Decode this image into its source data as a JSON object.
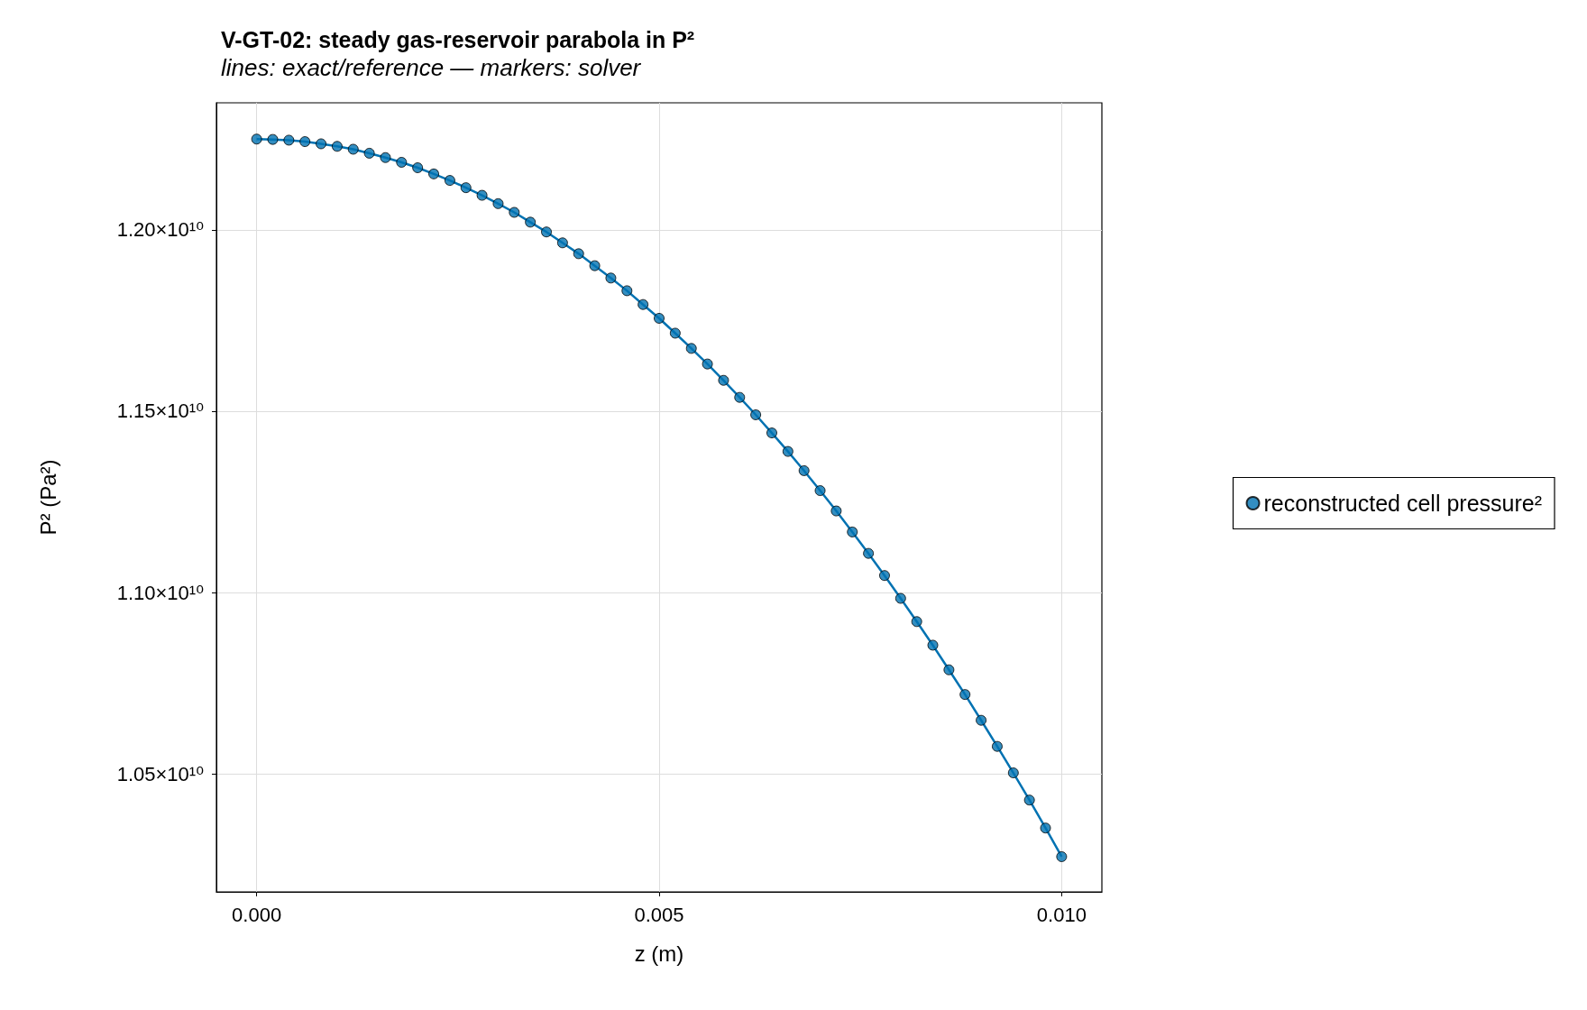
{
  "chart_data": {
    "type": "line",
    "title": "V-GT-02: steady gas-reservoir parabola in P²",
    "subtitle": "lines: exact/reference — markers: solver",
    "xlabel": "z (m)",
    "ylabel": "P² (Pa²)",
    "x": [
      0,
      0.0002,
      0.0004,
      0.0006,
      0.0008,
      0.001,
      0.0012,
      0.0014,
      0.0016,
      0.0018,
      0.002,
      0.0022,
      0.0024,
      0.0026,
      0.0028,
      0.003,
      0.0032,
      0.0034,
      0.0036,
      0.0038,
      0.004,
      0.0042,
      0.0044,
      0.0046,
      0.0048,
      0.005,
      0.0052,
      0.0054,
      0.0056,
      0.0058,
      0.006,
      0.0062,
      0.0064,
      0.0066,
      0.0068,
      0.007,
      0.0072,
      0.0074,
      0.0076,
      0.0078,
      0.008,
      0.0082,
      0.0084,
      0.0086,
      0.0088,
      0.009,
      0.0092,
      0.0094,
      0.0096,
      0.0098,
      0.01
    ],
    "series": [
      {
        "color": "#0072b2",
        "marker": "none",
        "line_style": "solid",
        "values": [
          12250000000,
          12249000000,
          12247000000,
          12243000000,
          12237000000,
          12230000000,
          12222000000,
          12211000000,
          12199000000,
          12186000000,
          12171000000,
          12154000000,
          12136000000,
          12116000000,
          12095000000,
          12072000000,
          12048000000,
          12021000000,
          11994000000,
          11964000000,
          11934000000,
          11901000000,
          11867000000,
          11832000000,
          11794000000,
          11756000000,
          11715000000,
          11673000000,
          11630000000,
          11585000000,
          11538000000,
          11490000000,
          11440000000,
          11389000000,
          11336000000,
          11281000000,
          11225000000,
          11167000000,
          11108000000,
          11047000000,
          10984000000,
          10920000000,
          10855000000,
          10787000000,
          10719000000,
          10648000000,
          10576000000,
          10503000000,
          10428000000,
          10351000000,
          10272000000
        ]
      },
      {
        "type": "scatter",
        "name": "reconstructed cell pressure²",
        "color": "#0072b2",
        "marker": "circle",
        "values": [
          12250000000,
          12249000000,
          12247000000,
          12243000000,
          12237000000,
          12230000000,
          12222000000,
          12211000000,
          12199000000,
          12186000000,
          12171000000,
          12154000000,
          12136000000,
          12116000000,
          12095000000,
          12072000000,
          12048000000,
          12021000000,
          11994000000,
          11964000000,
          11934000000,
          11901000000,
          11867000000,
          11832000000,
          11794000000,
          11756000000,
          11715000000,
          11673000000,
          11630000000,
          11585000000,
          11538000000,
          11490000000,
          11440000000,
          11389000000,
          11336000000,
          11281000000,
          11225000000,
          11167000000,
          11108000000,
          11047000000,
          10984000000,
          10920000000,
          10855000000,
          10787000000,
          10719000000,
          10648000000,
          10576000000,
          10503000000,
          10428000000,
          10351000000,
          10272000000
        ]
      }
    ],
    "xlim": [
      -0.0005,
      0.0105
    ],
    "xticks": [
      {
        "value": 0,
        "label": "0.000"
      },
      {
        "value": 0.005,
        "label": "0.005"
      },
      {
        "value": 0.01,
        "label": "0.010"
      }
    ],
    "ylim": [
      10175000000,
      12350000000
    ],
    "yticks": [
      {
        "value": 10500000000,
        "label": "1.05×10¹⁰"
      },
      {
        "value": 11000000000,
        "label": "1.10×10¹⁰"
      },
      {
        "value": 11500000000,
        "label": "1.15×10¹⁰"
      },
      {
        "value": 12000000000,
        "label": "1.20×10¹⁰"
      }
    ],
    "grid": true,
    "legend": "right"
  }
}
